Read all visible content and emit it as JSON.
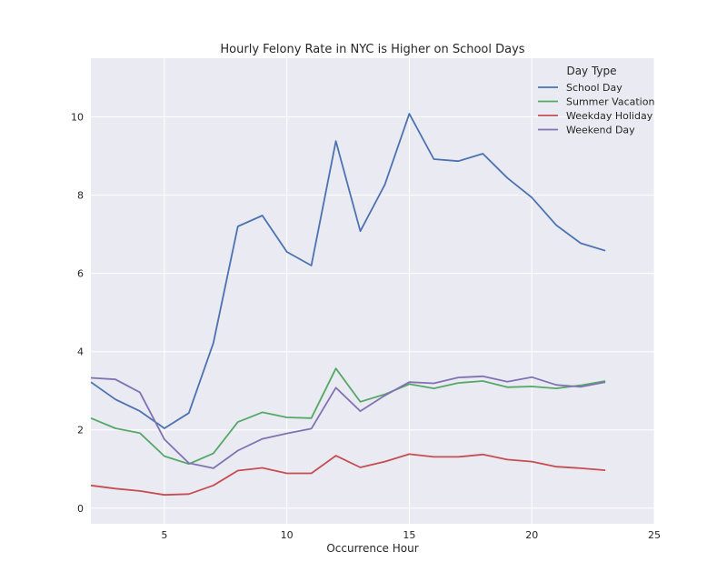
{
  "chart_data": {
    "type": "line",
    "title": "Hourly Felony Rate in NYC is Higher on School Days",
    "xlabel": "Occurrence Hour",
    "ylabel": "",
    "xlim": [
      2,
      25
    ],
    "ylim": [
      -0.4,
      11.5
    ],
    "xticks": [
      5,
      10,
      15,
      20,
      25
    ],
    "yticks": [
      0,
      2,
      4,
      6,
      8,
      10
    ],
    "grid": true,
    "legend": {
      "title": "Day Type",
      "placement": "top-right"
    },
    "x": [
      2,
      3,
      4,
      5,
      6,
      7,
      8,
      9,
      10,
      11,
      12,
      13,
      14,
      15,
      16,
      17,
      18,
      19,
      20,
      21,
      22,
      23
    ],
    "series": [
      {
        "name": "School Day",
        "color": "#4c72b0",
        "values": [
          3.22,
          2.78,
          2.48,
          2.04,
          2.43,
          4.22,
          7.2,
          7.48,
          6.55,
          6.2,
          9.38,
          7.08,
          8.27,
          10.08,
          8.92,
          8.87,
          9.06,
          8.44,
          7.94,
          7.23,
          6.77,
          6.58
        ]
      },
      {
        "name": "Summer Vacation",
        "color": "#55a868",
        "values": [
          2.3,
          2.04,
          1.92,
          1.33,
          1.13,
          1.4,
          2.2,
          2.45,
          2.32,
          2.3,
          3.57,
          2.72,
          2.91,
          3.17,
          3.06,
          3.2,
          3.25,
          3.09,
          3.11,
          3.06,
          3.14,
          3.25
        ]
      },
      {
        "name": "Weekday Holiday",
        "color": "#c44e52",
        "values": [
          0.58,
          0.5,
          0.44,
          0.34,
          0.36,
          0.58,
          0.96,
          1.03,
          0.89,
          0.89,
          1.34,
          1.04,
          1.19,
          1.38,
          1.31,
          1.31,
          1.37,
          1.24,
          1.19,
          1.06,
          1.02,
          0.97
        ]
      },
      {
        "name": "Weekend Day",
        "color": "#8172b2",
        "values": [
          3.33,
          3.29,
          2.96,
          1.76,
          1.15,
          1.02,
          1.47,
          1.77,
          1.91,
          2.03,
          3.08,
          2.48,
          2.88,
          3.22,
          3.19,
          3.34,
          3.37,
          3.23,
          3.35,
          3.15,
          3.1,
          3.22
        ]
      }
    ]
  }
}
